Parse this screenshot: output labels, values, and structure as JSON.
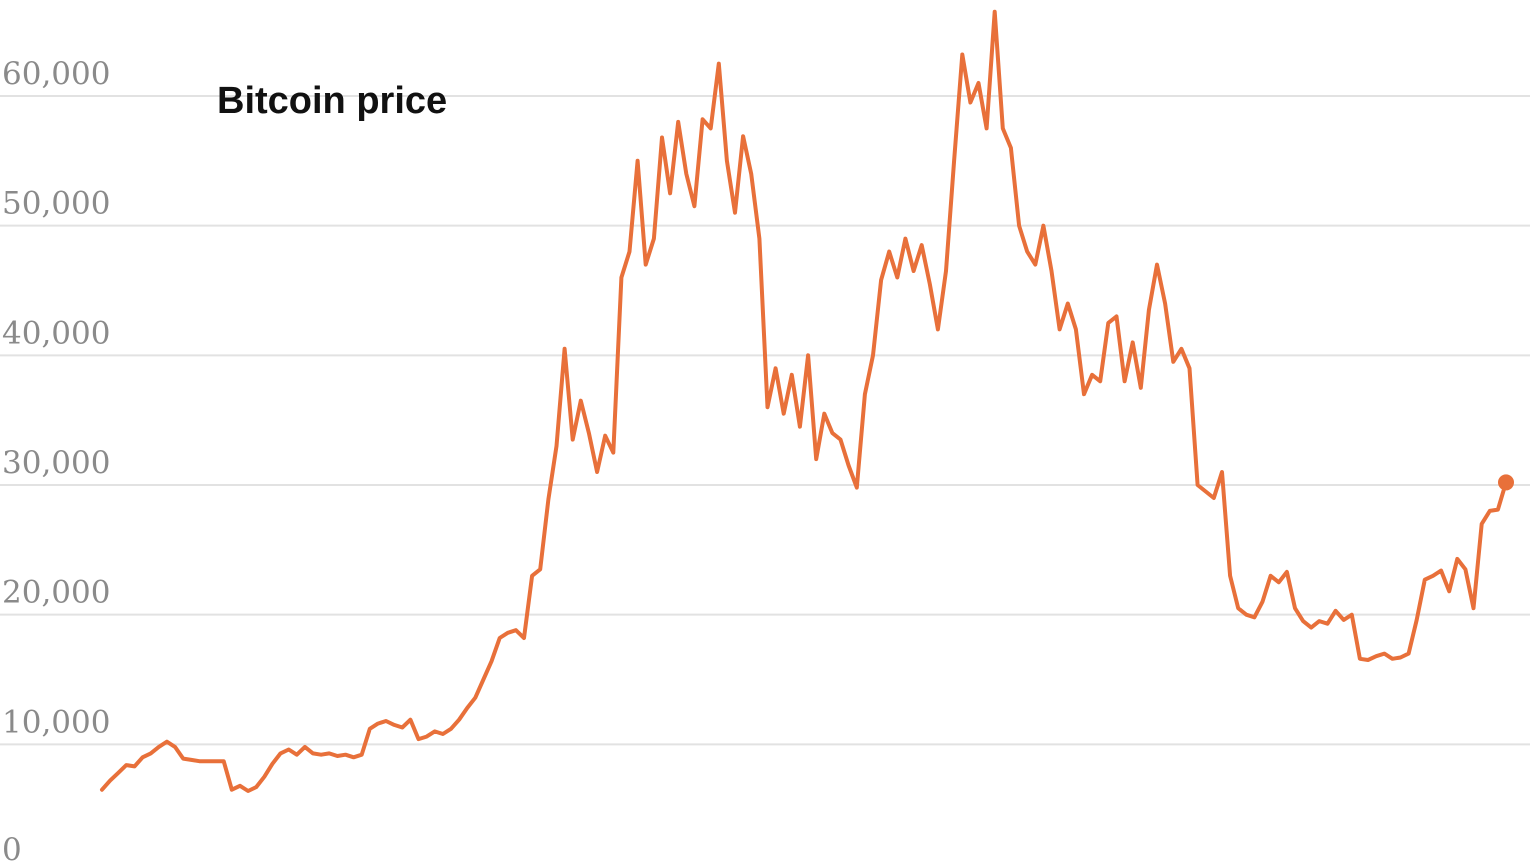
{
  "colors": {
    "line": "#e8703a",
    "grid": "#e2e2e2",
    "tick_text": "#8a8a8a",
    "title_text": "#111111"
  },
  "chart_data": {
    "type": "line",
    "title": "Bitcoin price",
    "xlabel": "",
    "ylabel": "",
    "ylim": [
      0,
      66000
    ],
    "yticks": [
      0,
      10000,
      20000,
      30000,
      40000,
      50000,
      60000
    ],
    "ytick_labels": [
      "0",
      "10,000",
      "20,000",
      "30,000",
      "40,000",
      "50,000",
      "60,000"
    ],
    "grid": true,
    "end_marker": true,
    "series": [
      {
        "values": [
          6500,
          7200,
          7800,
          8400,
          8300,
          9000,
          9300,
          9800,
          10200,
          9800,
          8900,
          8800,
          8700,
          8700,
          8700,
          8700,
          6500,
          6800,
          6400,
          6700,
          7500,
          8500,
          9300,
          9600,
          9200,
          9800,
          9300,
          9200,
          9300,
          9100,
          9200,
          9000,
          9200,
          11200,
          11600,
          11800,
          11500,
          11300,
          11900,
          10400,
          10600,
          11000,
          10800,
          11200,
          11900,
          12800,
          13600,
          15000,
          16400,
          18200,
          18600,
          18800,
          18200,
          23000,
          23500,
          28900,
          33000,
          40500,
          33500,
          36500,
          34000,
          31000,
          33800,
          32500,
          46000,
          48000,
          55000,
          47000,
          49000,
          56800,
          52500,
          58000,
          54000,
          51500,
          58200,
          57500,
          62500,
          55000,
          51000,
          56900,
          54000,
          49000,
          36000,
          39000,
          35500,
          38500,
          34500,
          40000,
          32000,
          35500,
          34000,
          33500,
          31500,
          29800,
          37000,
          40000,
          45800,
          48000,
          46000,
          49000,
          46500,
          48500,
          45500,
          42000,
          46500,
          55000,
          63200,
          59500,
          61000,
          57500,
          66500,
          57500,
          56000,
          50000,
          48000,
          47000,
          50000,
          46500,
          42000,
          44000,
          42000,
          37000,
          38500,
          38000,
          42500,
          43000,
          38000,
          41000,
          37500,
          43500,
          47000,
          44000,
          39500,
          40500,
          39000,
          30000,
          29500,
          29000,
          31000,
          23000,
          20500,
          20000,
          19800,
          21000,
          23000,
          22500,
          23300,
          20500,
          19500,
          19000,
          19500,
          19300,
          20300,
          19600,
          20000,
          16600,
          16500,
          16800,
          17000,
          16600,
          16700,
          17000,
          19600,
          22700,
          23000,
          23400,
          21800,
          24300,
          23500,
          20500,
          27000,
          28000,
          28100,
          30200
        ]
      }
    ]
  }
}
